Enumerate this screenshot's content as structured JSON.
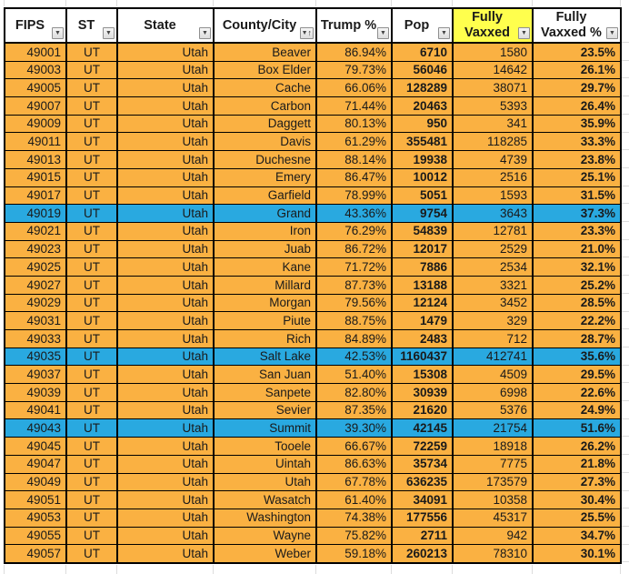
{
  "colors": {
    "row_orange": "#FAB142",
    "row_blue": "#29A9E0",
    "header_yellow": "#FFFF4D",
    "border": "#000000",
    "grid_line": "#DCDCDC",
    "text": "#1A1A1A"
  },
  "icons": {
    "filter_down": "▼",
    "sort_up": "↑"
  },
  "table": {
    "columns": [
      {
        "key": "fips",
        "label": "FIPS"
      },
      {
        "key": "st",
        "label": "ST"
      },
      {
        "key": "state",
        "label": "State"
      },
      {
        "key": "county",
        "label": "County/City",
        "sorted": "asc"
      },
      {
        "key": "trump_pct",
        "label": "Trump %"
      },
      {
        "key": "pop",
        "label": "Pop"
      },
      {
        "key": "fully_vaxxed",
        "label": "Fully Vaxxed",
        "header_highlight": true
      },
      {
        "key": "fully_vaxxed_pct",
        "label": "Fully Vaxxed %"
      }
    ],
    "rows": [
      {
        "fips": "49001",
        "st": "UT",
        "state": "Utah",
        "county": "Beaver",
        "trump_pct": "86.94%",
        "pop": "6710",
        "fully_vaxxed": "1580",
        "fully_vaxxed_pct": "23.5%",
        "highlight": false
      },
      {
        "fips": "49003",
        "st": "UT",
        "state": "Utah",
        "county": "Box Elder",
        "trump_pct": "79.73%",
        "pop": "56046",
        "fully_vaxxed": "14642",
        "fully_vaxxed_pct": "26.1%",
        "highlight": false
      },
      {
        "fips": "49005",
        "st": "UT",
        "state": "Utah",
        "county": "Cache",
        "trump_pct": "66.06%",
        "pop": "128289",
        "fully_vaxxed": "38071",
        "fully_vaxxed_pct": "29.7%",
        "highlight": false
      },
      {
        "fips": "49007",
        "st": "UT",
        "state": "Utah",
        "county": "Carbon",
        "trump_pct": "71.44%",
        "pop": "20463",
        "fully_vaxxed": "5393",
        "fully_vaxxed_pct": "26.4%",
        "highlight": false
      },
      {
        "fips": "49009",
        "st": "UT",
        "state": "Utah",
        "county": "Daggett",
        "trump_pct": "80.13%",
        "pop": "950",
        "fully_vaxxed": "341",
        "fully_vaxxed_pct": "35.9%",
        "highlight": false
      },
      {
        "fips": "49011",
        "st": "UT",
        "state": "Utah",
        "county": "Davis",
        "trump_pct": "61.29%",
        "pop": "355481",
        "fully_vaxxed": "118285",
        "fully_vaxxed_pct": "33.3%",
        "highlight": false
      },
      {
        "fips": "49013",
        "st": "UT",
        "state": "Utah",
        "county": "Duchesne",
        "trump_pct": "88.14%",
        "pop": "19938",
        "fully_vaxxed": "4739",
        "fully_vaxxed_pct": "23.8%",
        "highlight": false
      },
      {
        "fips": "49015",
        "st": "UT",
        "state": "Utah",
        "county": "Emery",
        "trump_pct": "86.47%",
        "pop": "10012",
        "fully_vaxxed": "2516",
        "fully_vaxxed_pct": "25.1%",
        "highlight": false
      },
      {
        "fips": "49017",
        "st": "UT",
        "state": "Utah",
        "county": "Garfield",
        "trump_pct": "78.99%",
        "pop": "5051",
        "fully_vaxxed": "1593",
        "fully_vaxxed_pct": "31.5%",
        "highlight": false
      },
      {
        "fips": "49019",
        "st": "UT",
        "state": "Utah",
        "county": "Grand",
        "trump_pct": "43.36%",
        "pop": "9754",
        "fully_vaxxed": "3643",
        "fully_vaxxed_pct": "37.3%",
        "highlight": true
      },
      {
        "fips": "49021",
        "st": "UT",
        "state": "Utah",
        "county": "Iron",
        "trump_pct": "76.29%",
        "pop": "54839",
        "fully_vaxxed": "12781",
        "fully_vaxxed_pct": "23.3%",
        "highlight": false
      },
      {
        "fips": "49023",
        "st": "UT",
        "state": "Utah",
        "county": "Juab",
        "trump_pct": "86.72%",
        "pop": "12017",
        "fully_vaxxed": "2529",
        "fully_vaxxed_pct": "21.0%",
        "highlight": false
      },
      {
        "fips": "49025",
        "st": "UT",
        "state": "Utah",
        "county": "Kane",
        "trump_pct": "71.72%",
        "pop": "7886",
        "fully_vaxxed": "2534",
        "fully_vaxxed_pct": "32.1%",
        "highlight": false
      },
      {
        "fips": "49027",
        "st": "UT",
        "state": "Utah",
        "county": "Millard",
        "trump_pct": "87.73%",
        "pop": "13188",
        "fully_vaxxed": "3321",
        "fully_vaxxed_pct": "25.2%",
        "highlight": false
      },
      {
        "fips": "49029",
        "st": "UT",
        "state": "Utah",
        "county": "Morgan",
        "trump_pct": "79.56%",
        "pop": "12124",
        "fully_vaxxed": "3452",
        "fully_vaxxed_pct": "28.5%",
        "highlight": false
      },
      {
        "fips": "49031",
        "st": "UT",
        "state": "Utah",
        "county": "Piute",
        "trump_pct": "88.75%",
        "pop": "1479",
        "fully_vaxxed": "329",
        "fully_vaxxed_pct": "22.2%",
        "highlight": false
      },
      {
        "fips": "49033",
        "st": "UT",
        "state": "Utah",
        "county": "Rich",
        "trump_pct": "84.89%",
        "pop": "2483",
        "fully_vaxxed": "712",
        "fully_vaxxed_pct": "28.7%",
        "highlight": false
      },
      {
        "fips": "49035",
        "st": "UT",
        "state": "Utah",
        "county": "Salt Lake",
        "trump_pct": "42.53%",
        "pop": "1160437",
        "fully_vaxxed": "412741",
        "fully_vaxxed_pct": "35.6%",
        "highlight": true
      },
      {
        "fips": "49037",
        "st": "UT",
        "state": "Utah",
        "county": "San Juan",
        "trump_pct": "51.40%",
        "pop": "15308",
        "fully_vaxxed": "4509",
        "fully_vaxxed_pct": "29.5%",
        "highlight": false
      },
      {
        "fips": "49039",
        "st": "UT",
        "state": "Utah",
        "county": "Sanpete",
        "trump_pct": "82.80%",
        "pop": "30939",
        "fully_vaxxed": "6998",
        "fully_vaxxed_pct": "22.6%",
        "highlight": false
      },
      {
        "fips": "49041",
        "st": "UT",
        "state": "Utah",
        "county": "Sevier",
        "trump_pct": "87.35%",
        "pop": "21620",
        "fully_vaxxed": "5376",
        "fully_vaxxed_pct": "24.9%",
        "highlight": false
      },
      {
        "fips": "49043",
        "st": "UT",
        "state": "Utah",
        "county": "Summit",
        "trump_pct": "39.30%",
        "pop": "42145",
        "fully_vaxxed": "21754",
        "fully_vaxxed_pct": "51.6%",
        "highlight": true
      },
      {
        "fips": "49045",
        "st": "UT",
        "state": "Utah",
        "county": "Tooele",
        "trump_pct": "66.67%",
        "pop": "72259",
        "fully_vaxxed": "18918",
        "fully_vaxxed_pct": "26.2%",
        "highlight": false
      },
      {
        "fips": "49047",
        "st": "UT",
        "state": "Utah",
        "county": "Uintah",
        "trump_pct": "86.63%",
        "pop": "35734",
        "fully_vaxxed": "7775",
        "fully_vaxxed_pct": "21.8%",
        "highlight": false
      },
      {
        "fips": "49049",
        "st": "UT",
        "state": "Utah",
        "county": "Utah",
        "trump_pct": "67.78%",
        "pop": "636235",
        "fully_vaxxed": "173579",
        "fully_vaxxed_pct": "27.3%",
        "highlight": false
      },
      {
        "fips": "49051",
        "st": "UT",
        "state": "Utah",
        "county": "Wasatch",
        "trump_pct": "61.40%",
        "pop": "34091",
        "fully_vaxxed": "10358",
        "fully_vaxxed_pct": "30.4%",
        "highlight": false
      },
      {
        "fips": "49053",
        "st": "UT",
        "state": "Utah",
        "county": "Washington",
        "trump_pct": "74.38%",
        "pop": "177556",
        "fully_vaxxed": "45317",
        "fully_vaxxed_pct": "25.5%",
        "highlight": false
      },
      {
        "fips": "49055",
        "st": "UT",
        "state": "Utah",
        "county": "Wayne",
        "trump_pct": "75.82%",
        "pop": "2711",
        "fully_vaxxed": "942",
        "fully_vaxxed_pct": "34.7%",
        "highlight": false
      },
      {
        "fips": "49057",
        "st": "UT",
        "state": "Utah",
        "county": "Weber",
        "trump_pct": "59.18%",
        "pop": "260213",
        "fully_vaxxed": "78310",
        "fully_vaxxed_pct": "30.1%",
        "highlight": false
      }
    ]
  }
}
